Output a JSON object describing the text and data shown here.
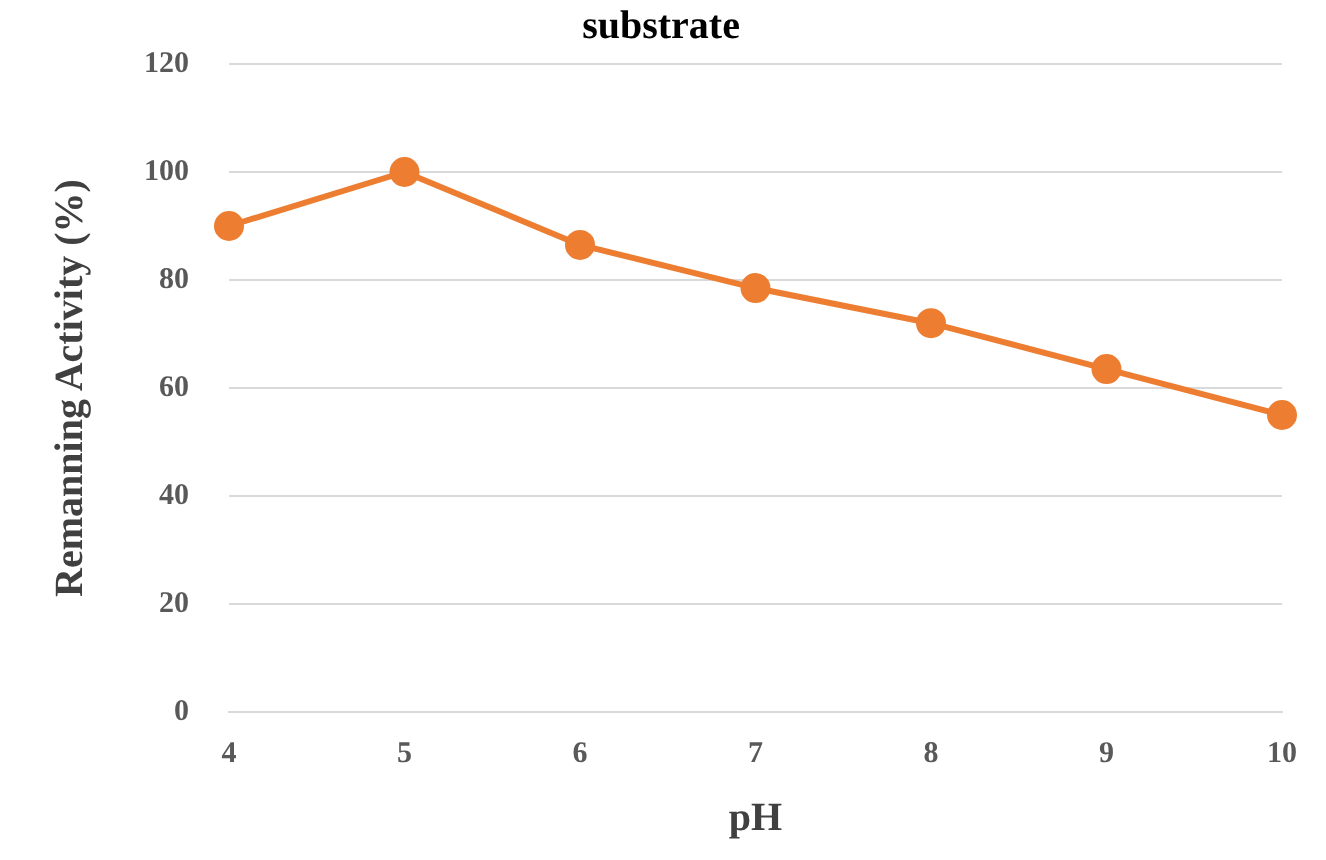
{
  "chart_data": {
    "type": "line",
    "title": "substrate",
    "xlabel": "pH",
    "ylabel": "Remanning Activity (%)",
    "categories": [
      "4",
      "5",
      "6",
      "7",
      "8",
      "9",
      "10"
    ],
    "series": [
      {
        "color": "#ed7d31",
        "values": [
          90,
          100,
          86.5,
          78.5,
          72,
          63.5,
          55
        ]
      }
    ],
    "ylim": [
      0,
      120
    ],
    "yticks": [
      0,
      20,
      40,
      60,
      80,
      100,
      120
    ],
    "grid": "y",
    "legend": false,
    "marker": "circle",
    "line_style": "solid"
  }
}
